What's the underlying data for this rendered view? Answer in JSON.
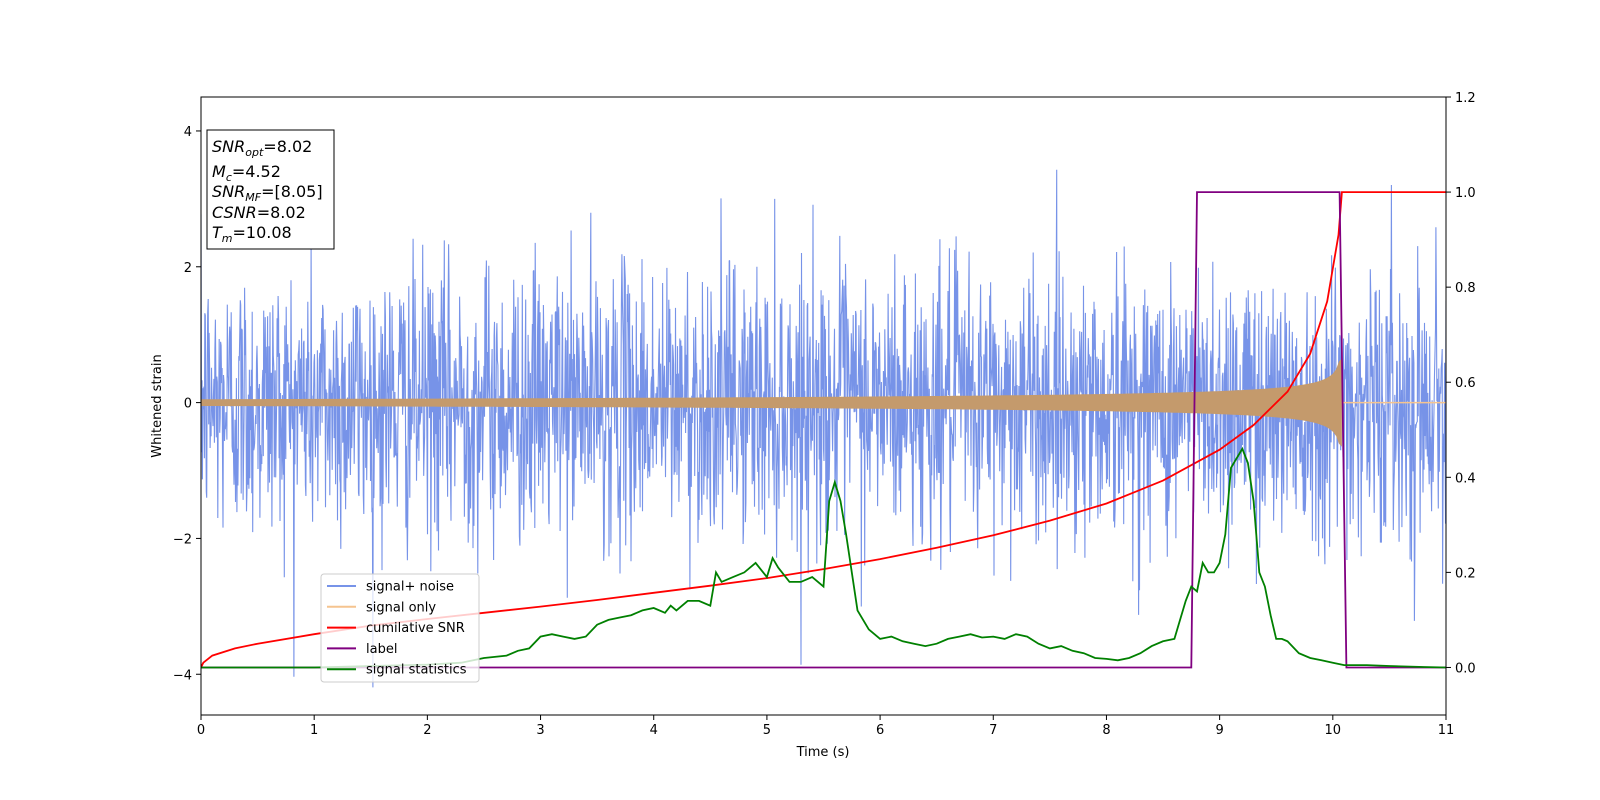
{
  "chart_data": {
    "type": "line",
    "xlabel": "Time (s)",
    "ylabel": "Whitened strain",
    "xlim": [
      0,
      11
    ],
    "ylim_left": [
      -4.6,
      4.5
    ],
    "ylim_right": [
      -0.1,
      1.2
    ],
    "x_ticks": [
      "0",
      "1",
      "2",
      "3",
      "4",
      "5",
      "6",
      "7",
      "8",
      "9",
      "10",
      "11"
    ],
    "y_left_ticks": [
      "−4",
      "−2",
      "0",
      "2",
      "4"
    ],
    "y_right_ticks": [
      "0.0",
      "0.2",
      "0.4",
      "0.6",
      "0.8",
      "1.0",
      "1.2"
    ],
    "legend_position": "lower-left",
    "info_box": [
      {
        "var": "SNR",
        "sub": "opt",
        "value": "=8.02"
      },
      {
        "var": "M",
        "sub": "c",
        "value": "=4.52"
      },
      {
        "var": "SNR",
        "sub": "MF",
        "value": "=[8.05]"
      },
      {
        "var": "CSNR",
        "sub": "",
        "value": "=8.02"
      },
      {
        "var": "T",
        "sub": "m",
        "value": "=10.08"
      }
    ],
    "series": [
      {
        "name": "signal+ noise",
        "axis": "left",
        "color": "#7793e8",
        "kind": "noise",
        "sigma": 1.0,
        "x_range": [
          0,
          11
        ]
      },
      {
        "name": "signal only",
        "axis": "left",
        "color": "#f5c48f",
        "kind": "chirp",
        "amplitude_start": 0.05,
        "amplitude_end": 0.65,
        "merger_time": 10.08,
        "x_range": [
          0,
          11
        ]
      },
      {
        "name": "cumilative SNR",
        "axis": "right",
        "color": "#ff0000",
        "x": [
          0,
          0.02,
          0.1,
          0.3,
          0.5,
          1,
          1.5,
          2,
          2.5,
          3,
          3.5,
          4,
          4.5,
          5,
          5.5,
          6,
          6.5,
          7,
          7.5,
          8,
          8.5,
          9,
          9.3,
          9.6,
          9.8,
          9.95,
          10.05,
          10.08,
          10.5,
          11
        ],
        "y": [
          0.0,
          0.01,
          0.025,
          0.04,
          0.05,
          0.07,
          0.088,
          0.102,
          0.115,
          0.128,
          0.142,
          0.157,
          0.172,
          0.188,
          0.207,
          0.228,
          0.252,
          0.278,
          0.309,
          0.345,
          0.393,
          0.458,
          0.51,
          0.58,
          0.66,
          0.77,
          0.91,
          1.0,
          1.0,
          1.0
        ]
      },
      {
        "name": "label",
        "axis": "right",
        "color": "#800080",
        "x": [
          0,
          8.75,
          8.8,
          10.06,
          10.12,
          11
        ],
        "y": [
          0,
          0,
          1,
          1,
          0,
          0
        ]
      },
      {
        "name": "signal statistics",
        "axis": "right",
        "color": "#008000",
        "x": [
          0,
          1,
          1.5,
          2,
          2.3,
          2.5,
          2.7,
          2.8,
          2.9,
          3,
          3.1,
          3.2,
          3.3,
          3.4,
          3.5,
          3.6,
          3.7,
          3.8,
          3.9,
          4,
          4.1,
          4.15,
          4.2,
          4.3,
          4.35,
          4.4,
          4.5,
          4.55,
          4.6,
          4.7,
          4.8,
          4.9,
          5,
          5.05,
          5.1,
          5.2,
          5.3,
          5.4,
          5.5,
          5.55,
          5.6,
          5.65,
          5.7,
          5.75,
          5.8,
          5.9,
          6,
          6.1,
          6.2,
          6.3,
          6.4,
          6.5,
          6.6,
          6.7,
          6.8,
          6.9,
          7,
          7.1,
          7.2,
          7.3,
          7.4,
          7.5,
          7.6,
          7.7,
          7.8,
          7.9,
          8,
          8.1,
          8.2,
          8.3,
          8.4,
          8.5,
          8.6,
          8.7,
          8.75,
          8.8,
          8.85,
          8.9,
          8.95,
          9,
          9.05,
          9.1,
          9.15,
          9.2,
          9.25,
          9.3,
          9.35,
          9.4,
          9.45,
          9.5,
          9.55,
          9.6,
          9.7,
          9.8,
          9.9,
          10,
          10.1,
          10.3,
          10.5,
          10.8,
          11
        ],
        "y": [
          0.0,
          0.0,
          0.003,
          0.006,
          0.01,
          0.02,
          0.025,
          0.035,
          0.04,
          0.065,
          0.07,
          0.065,
          0.06,
          0.065,
          0.09,
          0.1,
          0.105,
          0.11,
          0.12,
          0.125,
          0.115,
          0.13,
          0.12,
          0.14,
          0.14,
          0.14,
          0.13,
          0.2,
          0.18,
          0.19,
          0.2,
          0.22,
          0.19,
          0.23,
          0.21,
          0.18,
          0.18,
          0.19,
          0.17,
          0.35,
          0.39,
          0.35,
          0.28,
          0.2,
          0.12,
          0.08,
          0.06,
          0.065,
          0.055,
          0.05,
          0.045,
          0.05,
          0.06,
          0.065,
          0.07,
          0.063,
          0.065,
          0.06,
          0.07,
          0.065,
          0.05,
          0.04,
          0.045,
          0.035,
          0.03,
          0.02,
          0.018,
          0.015,
          0.02,
          0.03,
          0.045,
          0.055,
          0.06,
          0.14,
          0.17,
          0.16,
          0.22,
          0.2,
          0.2,
          0.22,
          0.28,
          0.42,
          0.44,
          0.46,
          0.43,
          0.35,
          0.2,
          0.17,
          0.11,
          0.06,
          0.06,
          0.055,
          0.03,
          0.02,
          0.015,
          0.01,
          0.005,
          0.005,
          0.003,
          0.001,
          0.0
        ]
      }
    ]
  }
}
